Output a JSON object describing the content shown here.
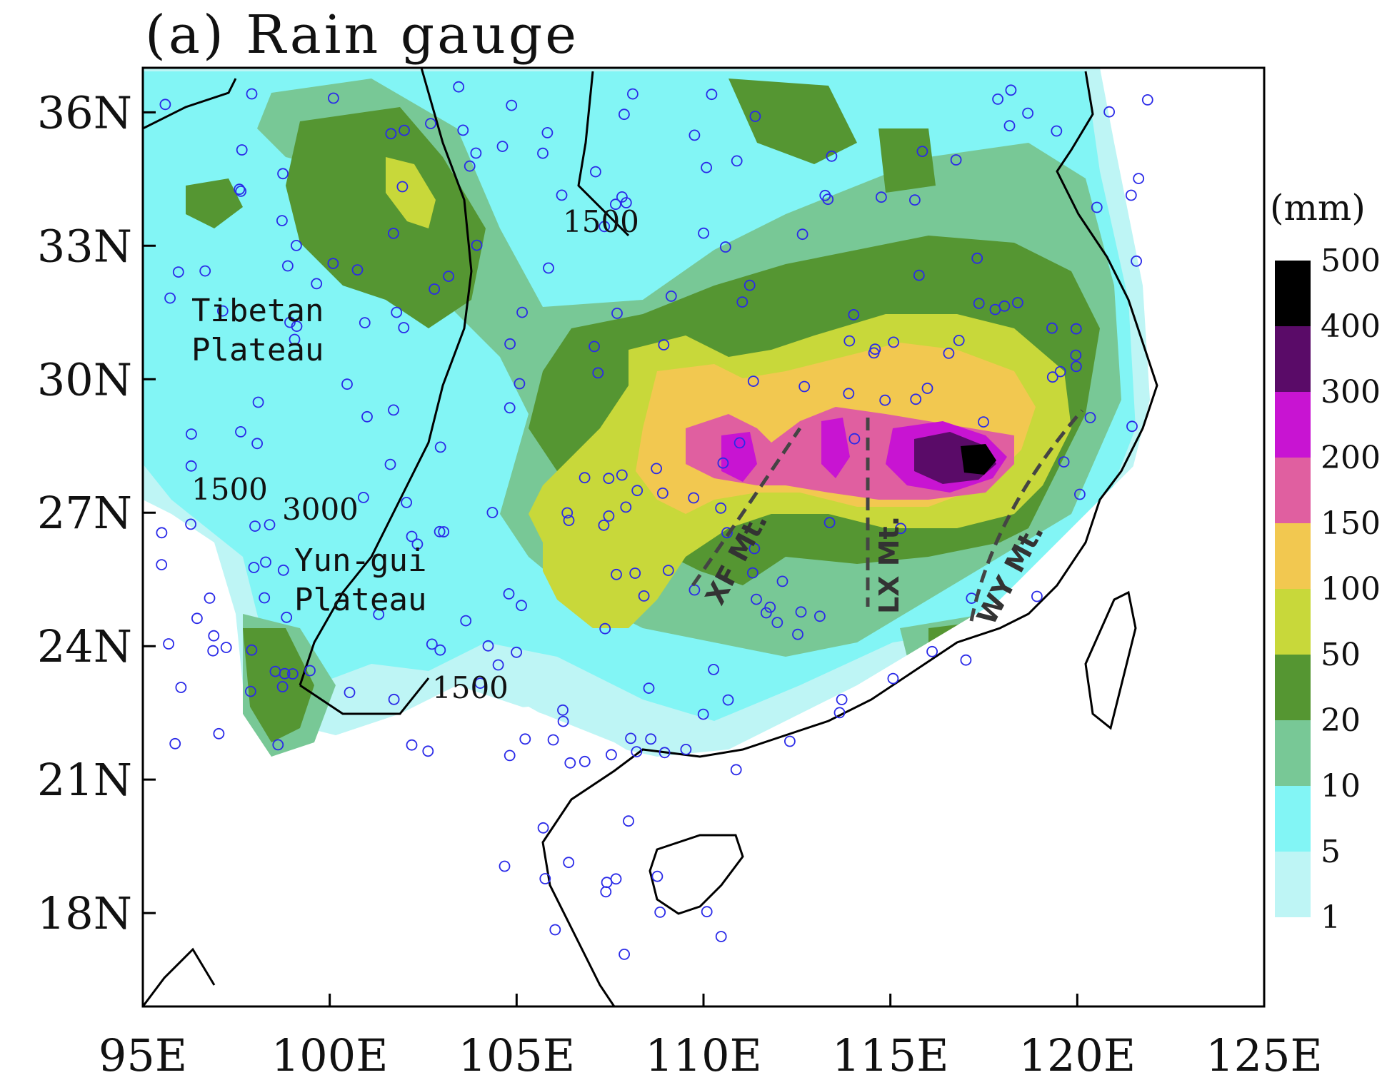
{
  "title": "(a) Rain gauge",
  "colors": {
    "land_coast": "#000000",
    "station_marker": "#2a2ae8",
    "contour_line": "#9a9a9a",
    "ridge_line": "#444444"
  },
  "map": {
    "lon_range": [
      95,
      125
    ],
    "lat_range": [
      15.9,
      37.0
    ],
    "x_ticks": [
      "95E",
      "100E",
      "105E",
      "110E",
      "115E",
      "120E",
      "125E"
    ],
    "x_tick_values": [
      95,
      100,
      105,
      110,
      115,
      120,
      125
    ],
    "y_ticks": [
      "36N",
      "33N",
      "30N",
      "27N",
      "24N",
      "21N",
      "18N"
    ],
    "y_tick_values": [
      36,
      33,
      30,
      27,
      24,
      21,
      18
    ],
    "region_labels": {
      "tibetan": [
        "Tibetan",
        "Plateau"
      ],
      "yungui": [
        "Yun-gui",
        "Plateau"
      ]
    },
    "topo_contour_labels": {
      "c1500_north": "1500",
      "c1500_west": "1500",
      "c3000": "3000",
      "c1500_south": "1500"
    },
    "mountain_labels": {
      "xf": "XF Mt.",
      "lx": "LX Mt.",
      "wy": "WY Mt."
    }
  },
  "colorbar": {
    "unit": "(mm)",
    "levels": [
      "500",
      "400",
      "300",
      "200",
      "150",
      "100",
      "50",
      "20",
      "10",
      "5",
      "1"
    ],
    "colors": [
      "#000000",
      "#5a0b68",
      "#c814d2",
      "#e05fa0",
      "#f2c850",
      "#c8d83a",
      "#559632",
      "#78c896",
      "#82f5f5",
      "#bef5f5"
    ]
  }
}
